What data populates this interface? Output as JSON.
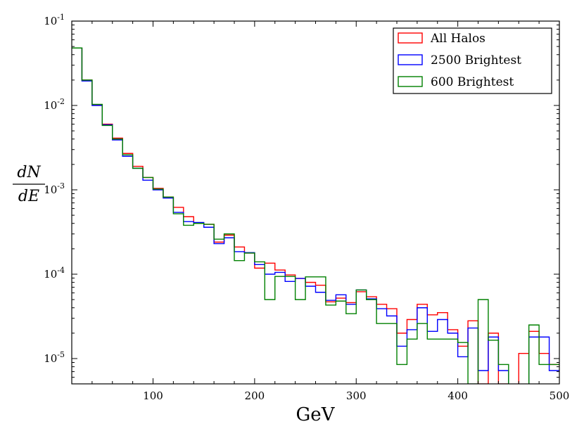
{
  "chart_data": {
    "type": "step",
    "xlabel": "GeV",
    "ylabel_numerator": "dN",
    "ylabel_denominator": "dE",
    "xlim": [
      20,
      500
    ],
    "ylim_log10": [
      -5.3,
      -1
    ],
    "bin_width": 10,
    "bin_edges_start": 20,
    "xticks": [
      100,
      200,
      300,
      400,
      500
    ],
    "xtick_labels": [
      "100",
      "200",
      "300",
      "400",
      "500"
    ],
    "yticks_exponent": [
      -5,
      -4,
      -3,
      -2,
      -1
    ],
    "ytick_labels": [
      {
        "base": "10",
        "exp": "-5"
      },
      {
        "base": "10",
        "exp": "-4"
      },
      {
        "base": "10",
        "exp": "-3"
      },
      {
        "base": "10",
        "exp": "-2"
      },
      {
        "base": "10",
        "exp": "-1"
      }
    ],
    "legend_position": "top-right",
    "series": [
      {
        "name": "All Halos",
        "color": "#ff0000",
        "values": [
          0.048,
          0.02,
          0.0102,
          0.006,
          0.0041,
          0.0027,
          0.0019,
          0.0014,
          0.00104,
          0.00082,
          0.00062,
          0.00048,
          0.0004,
          0.00039,
          0.00024,
          0.00029,
          0.00021,
          0.000178,
          0.000118,
          0.000135,
          0.000112,
          9.8e-05,
          8.9e-05,
          8e-05,
          7.4e-05,
          4.7e-05,
          5.2e-05,
          4.6e-05,
          6.2e-05,
          5.4e-05,
          4.4e-05,
          3.9e-05,
          2e-05,
          2.9e-05,
          4.4e-05,
          3.3e-05,
          3.5e-05,
          2.2e-05,
          1.4e-05,
          2.8e-05,
          5e-06,
          2e-05,
          5e-06,
          4e-06,
          1.15e-05,
          2.1e-05,
          1.15e-05,
          8.5e-06
        ]
      },
      {
        "name": "2500 Brightest",
        "color": "#0000ff",
        "values": [
          0.048,
          0.0195,
          0.01,
          0.0059,
          0.0039,
          0.0025,
          0.0018,
          0.0013,
          0.001,
          0.0008,
          0.00054,
          0.00042,
          0.00041,
          0.00036,
          0.00023,
          0.00027,
          0.000185,
          0.00018,
          0.00013,
          0.0001,
          0.000105,
          8.2e-05,
          8.9e-05,
          7.2e-05,
          6.1e-05,
          4.9e-05,
          5.7e-05,
          4.4e-05,
          6.5e-05,
          5.1e-05,
          3.9e-05,
          3.2e-05,
          1.4e-05,
          2.2e-05,
          4e-05,
          2.1e-05,
          2.9e-05,
          2e-05,
          1.05e-05,
          2.3e-05,
          7.2e-06,
          1.8e-05,
          7.2e-06,
          4e-06,
          4e-06,
          1.8e-05,
          1.8e-05,
          7.2e-06
        ]
      },
      {
        "name": "600 Brightest",
        "color": "#008000",
        "values": [
          0.048,
          0.02,
          0.0103,
          0.0058,
          0.004,
          0.0026,
          0.0018,
          0.0014,
          0.00102,
          0.00082,
          0.00052,
          0.00038,
          0.0004,
          0.00039,
          0.00026,
          0.0003,
          0.000145,
          0.000178,
          0.00014,
          5e-05,
          9.4e-05,
          9.4e-05,
          5e-05,
          9.3e-05,
          9.3e-05,
          4.3e-05,
          4.8e-05,
          3.4e-05,
          6.5e-05,
          5e-05,
          2.6e-05,
          2.6e-05,
          8.5e-06,
          1.7e-05,
          2.6e-05,
          1.7e-05,
          1.7e-05,
          1.7e-05,
          1.55e-05,
          5e-06,
          5e-05,
          1.65e-05,
          8.5e-06,
          4e-06,
          4e-06,
          2.5e-05,
          8.5e-06,
          8.5e-06
        ]
      }
    ]
  }
}
